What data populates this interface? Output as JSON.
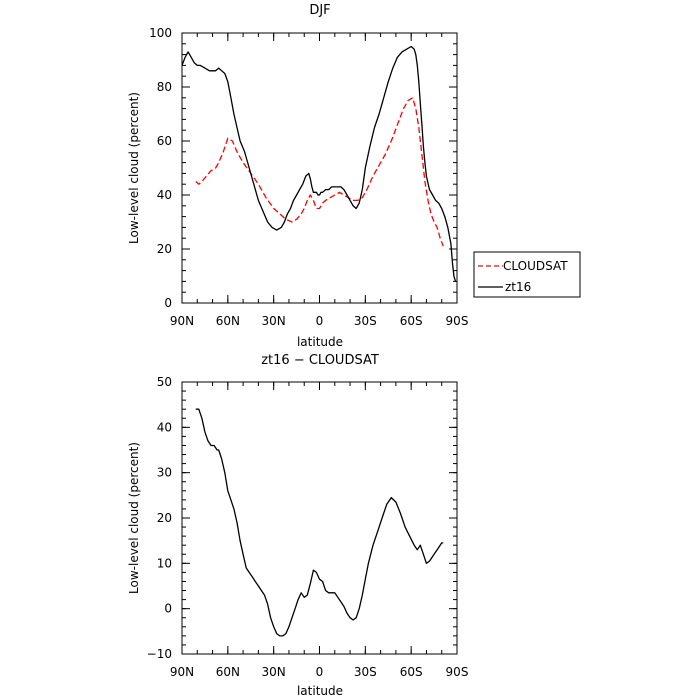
{
  "colors": {
    "cloudsat": "#ff0000",
    "zt16": "#000000",
    "axis": "#000000"
  },
  "legend": {
    "placement": "right of top panel",
    "entries": [
      "CLOUDSAT",
      "zt16"
    ]
  },
  "chart_data": [
    {
      "type": "line",
      "title": "DJF",
      "xlabel": "latitude",
      "ylabel": "Low-level cloud (percent)",
      "xlim": [
        90,
        -90
      ],
      "ylim": [
        0,
        100
      ],
      "xticks": [
        90,
        60,
        30,
        0,
        -30,
        -60,
        -90
      ],
      "xticklabels": [
        "90N",
        "60N",
        "30N",
        "0",
        "30S",
        "60S",
        "90S"
      ],
      "yticks": [
        0,
        20,
        40,
        60,
        80,
        100
      ],
      "yticklabels": [
        "0",
        "20",
        "40",
        "60",
        "80",
        "100"
      ],
      "grid": false,
      "series": [
        {
          "name": "CLOUDSAT",
          "style": "dashed",
          "x": [
            81,
            79,
            77,
            74,
            71,
            68,
            66,
            63,
            60,
            57,
            54,
            50,
            45,
            40,
            35,
            30,
            26,
            22,
            18,
            15,
            12,
            10,
            8,
            6,
            4,
            2,
            0,
            -2,
            -4,
            -7,
            -10,
            -13,
            -16,
            -19,
            -22,
            -25,
            -28,
            -31,
            -35,
            -39,
            -43,
            -47,
            -51,
            -55,
            -58,
            -61,
            -63,
            -65,
            -67,
            -69,
            -71,
            -73,
            -75,
            -77,
            -79,
            -81
          ],
          "y": [
            45,
            44,
            45,
            47,
            49,
            50,
            52,
            56,
            61,
            60,
            56,
            52,
            48,
            44,
            39,
            35,
            33,
            31,
            30,
            31,
            33,
            35,
            38,
            40,
            38,
            35,
            35,
            37,
            38,
            39,
            40,
            41,
            40,
            39,
            38,
            38,
            39,
            42,
            47,
            51,
            55,
            60,
            66,
            72,
            75,
            76,
            72,
            65,
            55,
            45,
            38,
            33,
            30,
            28,
            24,
            21
          ]
        },
        {
          "name": "zt16",
          "style": "solid",
          "x": [
            90,
            88,
            86,
            84,
            82,
            80,
            78,
            75,
            72,
            70,
            68,
            66,
            64,
            62,
            60,
            58,
            56,
            54,
            52,
            49,
            46,
            43,
            40,
            37,
            34,
            31,
            28,
            25,
            23,
            21,
            19,
            17,
            15,
            13,
            11,
            9,
            7,
            6,
            5,
            4,
            3,
            2,
            1,
            0,
            -1,
            -2,
            -4,
            -6,
            -8,
            -10,
            -12,
            -14,
            -16,
            -18,
            -20,
            -22,
            -24,
            -26,
            -28,
            -30,
            -33,
            -36,
            -39,
            -42,
            -45,
            -48,
            -51,
            -54,
            -57,
            -60,
            -62,
            -63,
            -64,
            -65,
            -66,
            -67,
            -68,
            -69,
            -70,
            -72,
            -74,
            -76,
            -78,
            -80,
            -82,
            -84,
            -86,
            -87,
            -88,
            -89
          ],
          "y": [
            88,
            91,
            93,
            91,
            89,
            88,
            88,
            87,
            86,
            86,
            86,
            87,
            86,
            85,
            82,
            76,
            70,
            65,
            60,
            56,
            50,
            44,
            38,
            34,
            30,
            28,
            27,
            28,
            30,
            33,
            35,
            38,
            40,
            42,
            44,
            47,
            48,
            46,
            43,
            41,
            41,
            41,
            40,
            40,
            41,
            41,
            42,
            42,
            43,
            43,
            43,
            43,
            42,
            40,
            38,
            36,
            35,
            37,
            42,
            50,
            58,
            65,
            70,
            76,
            82,
            87,
            91,
            93,
            94,
            95,
            94,
            92,
            88,
            82,
            74,
            66,
            58,
            52,
            47,
            42,
            40,
            38,
            37,
            35,
            32,
            28,
            22,
            15,
            10,
            8
          ]
        }
      ]
    },
    {
      "type": "line",
      "title": "zt16 − CLOUDSAT",
      "xlabel": "latitude",
      "ylabel": "Low-level cloud (percent)",
      "xlim": [
        90,
        -90
      ],
      "ylim": [
        -10,
        50
      ],
      "xticks": [
        90,
        60,
        30,
        0,
        -30,
        -60,
        -90
      ],
      "xticklabels": [
        "90N",
        "60N",
        "30N",
        "0",
        "30S",
        "60S",
        "90S"
      ],
      "yticks": [
        -10,
        0,
        10,
        20,
        30,
        40,
        50
      ],
      "yticklabels": [
        "−10",
        "0",
        "10",
        "20",
        "30",
        "40",
        "50"
      ],
      "grid": false,
      "series": [
        {
          "style": "solid",
          "x": [
            81,
            79,
            77,
            75,
            73,
            71,
            69,
            67,
            66,
            64,
            62,
            60,
            58,
            56,
            54,
            52,
            50,
            48,
            46,
            44,
            42,
            40,
            38,
            36,
            34,
            32,
            30,
            28,
            26,
            24,
            22,
            20,
            18,
            16,
            14,
            12,
            10,
            8,
            6,
            4,
            2,
            0,
            -2,
            -4,
            -6,
            -8,
            -10,
            -12,
            -14,
            -16,
            -18,
            -20,
            -22,
            -24,
            -26,
            -28,
            -30,
            -32,
            -35,
            -38,
            -41,
            -44,
            -47,
            -50,
            -53,
            -56,
            -59,
            -62,
            -64,
            -66,
            -68,
            -69,
            -70,
            -72,
            -74,
            -76,
            -78,
            -80,
            -81
          ],
          "y": [
            44,
            44,
            42,
            39,
            37,
            36,
            36,
            35,
            35,
            33,
            30,
            26,
            24,
            22,
            19,
            15,
            12,
            9,
            8,
            7,
            6,
            5,
            4,
            3,
            1,
            -2,
            -4,
            -5.5,
            -6,
            -6,
            -5.5,
            -4,
            -2,
            0,
            2,
            3.5,
            2.5,
            3,
            5.5,
            8.5,
            8,
            6.5,
            6,
            4,
            3.5,
            3.5,
            3.5,
            2.5,
            1.5,
            0.5,
            -1,
            -2,
            -2.5,
            -2,
            0,
            3,
            6.5,
            10,
            14,
            17,
            20,
            23,
            24.5,
            23.5,
            21,
            18,
            16,
            14,
            13,
            14,
            12,
            11,
            10,
            10.5,
            11.5,
            12.5,
            13.5,
            14.5,
            14.5
          ]
        }
      ]
    }
  ]
}
